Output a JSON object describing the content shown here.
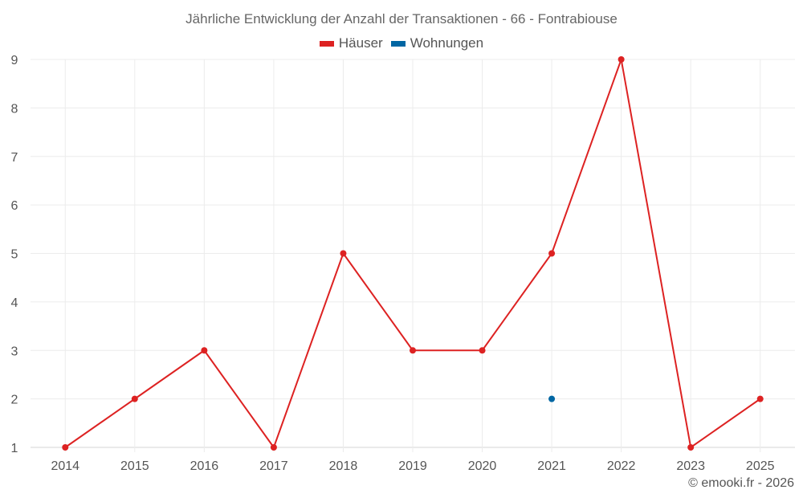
{
  "title": "Jährliche Entwicklung der Anzahl der Transaktionen - 66 - Fontrabiouse",
  "legend": [
    {
      "label": "Häuser",
      "color": "#dd2222"
    },
    {
      "label": "Wohnungen",
      "color": "#0066a3"
    }
  ],
  "credit": "© emooki.fr - 2026",
  "chart_data": {
    "type": "line",
    "title": "Jährliche Entwicklung der Anzahl der Transaktionen - 66 - Fontrabiouse",
    "categories": [
      "2014",
      "2015",
      "2016",
      "2017",
      "2018",
      "2019",
      "2020",
      "2021",
      "2022",
      "2023",
      "2025"
    ],
    "series": [
      {
        "name": "Häuser",
        "color": "#dd2222",
        "values": [
          1,
          2,
          3,
          1,
          5,
          3,
          3,
          5,
          9,
          1,
          2
        ]
      },
      {
        "name": "Wohnungen",
        "color": "#0066a3",
        "values": [
          null,
          null,
          null,
          null,
          null,
          null,
          null,
          2,
          null,
          null,
          null
        ]
      }
    ],
    "xlabel": "",
    "ylabel": "",
    "ylim": [
      1,
      9
    ],
    "yticks": [
      1,
      2,
      3,
      4,
      5,
      6,
      7,
      8,
      9
    ],
    "grid": true,
    "legend_position": "top"
  }
}
